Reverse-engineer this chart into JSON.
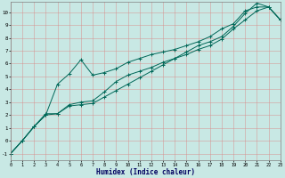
{
  "xlabel": "Humidex (Indice chaleur)",
  "bg_color": "#c8e8e4",
  "grid_major_color": "#e8b0b0",
  "grid_minor_color": "#e8c8c8",
  "line_color": "#006858",
  "xlim": [
    0,
    23
  ],
  "ylim": [
    -1.5,
    10.8
  ],
  "xticks": [
    0,
    1,
    2,
    3,
    4,
    5,
    6,
    7,
    8,
    9,
    10,
    11,
    12,
    13,
    14,
    15,
    16,
    17,
    18,
    19,
    20,
    21,
    22,
    23
  ],
  "yticks": [
    -1,
    0,
    1,
    2,
    3,
    4,
    5,
    6,
    7,
    8,
    9,
    10
  ],
  "line1_x": [
    0,
    1,
    2,
    3,
    4,
    5,
    6,
    7,
    8,
    9,
    10,
    11,
    12,
    13,
    14,
    15,
    16,
    17,
    18,
    19,
    20,
    21,
    22,
    23
  ],
  "line1_y": [
    -1.0,
    0.0,
    1.1,
    2.0,
    2.1,
    2.8,
    3.0,
    3.1,
    3.8,
    4.6,
    5.1,
    5.4,
    5.7,
    6.1,
    6.4,
    6.7,
    7.1,
    7.4,
    7.9,
    8.7,
    9.4,
    10.1,
    10.4,
    9.4
  ],
  "line2_x": [
    0,
    1,
    2,
    3,
    4,
    5,
    6,
    7,
    8,
    9,
    10,
    11,
    12,
    13,
    14,
    15,
    16,
    17,
    18,
    19,
    20,
    21,
    22,
    23
  ],
  "line2_y": [
    -1.0,
    0.0,
    1.1,
    2.0,
    4.4,
    5.2,
    6.3,
    5.1,
    5.3,
    5.6,
    6.1,
    6.4,
    6.7,
    6.9,
    7.1,
    7.4,
    7.7,
    8.1,
    8.7,
    9.1,
    10.1,
    10.4,
    10.4,
    9.4
  ],
  "line3_x": [
    0,
    1,
    2,
    3,
    4,
    5,
    6,
    7,
    8,
    9,
    10,
    11,
    12,
    13,
    14,
    15,
    16,
    17,
    18,
    19,
    20,
    21,
    22,
    23
  ],
  "line3_y": [
    -1.0,
    0.0,
    1.1,
    2.1,
    2.1,
    2.7,
    2.8,
    2.9,
    3.4,
    3.9,
    4.4,
    4.9,
    5.4,
    5.9,
    6.4,
    6.9,
    7.4,
    7.7,
    8.1,
    8.9,
    9.9,
    10.7,
    10.4,
    9.4
  ]
}
